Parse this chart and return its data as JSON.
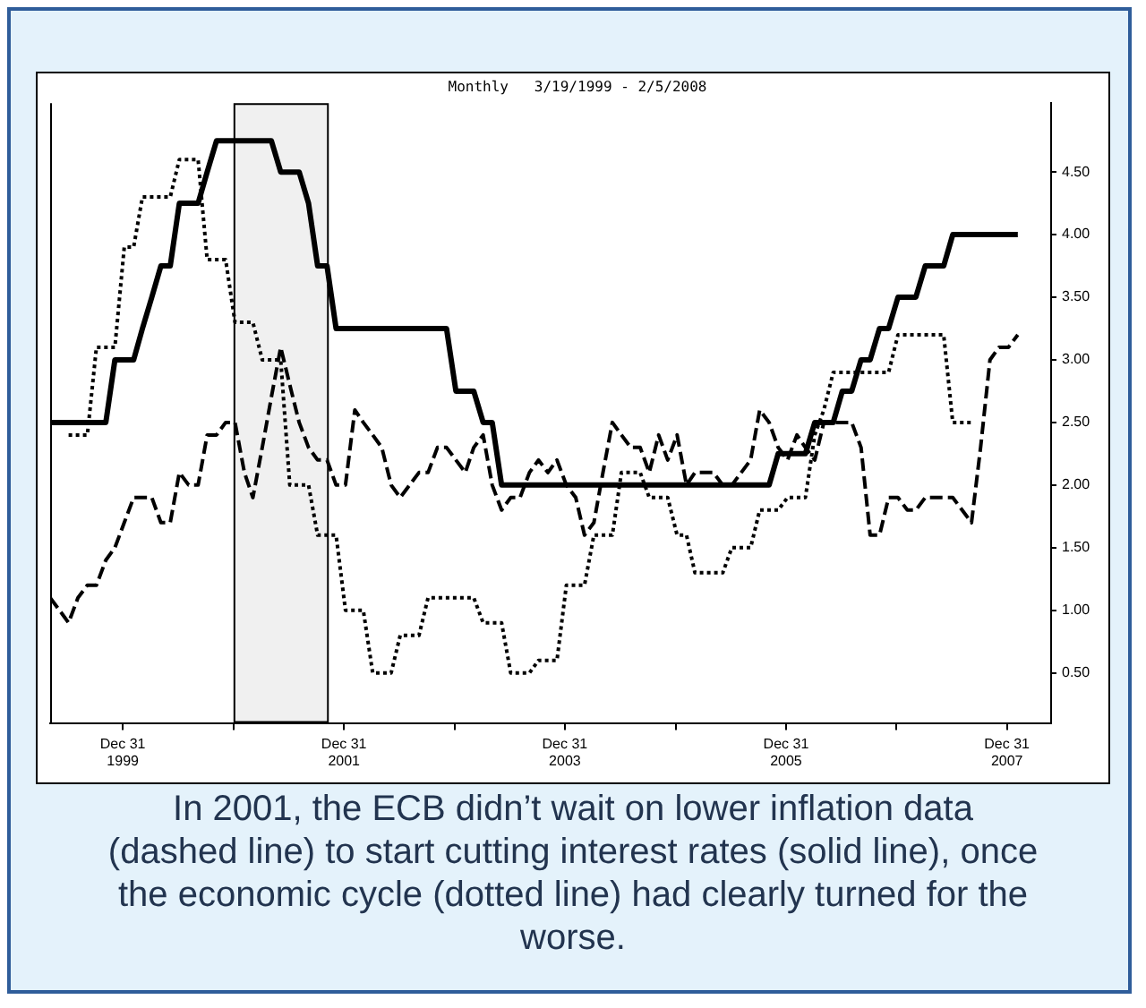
{
  "chart_data": {
    "type": "line",
    "title": "Monthly   3/19/1999 - 2/5/2008",
    "x": [
      "1999-05-05",
      "1999-06-05",
      "1999-07-05",
      "1999-08-05",
      "1999-09-05",
      "1999-10-05",
      "1999-11-05",
      "1999-12-05",
      "2000-01-05",
      "2000-02-05",
      "2000-03-05",
      "2000-04-05",
      "2000-05-05",
      "2000-06-05",
      "2000-07-05",
      "2000-08-05",
      "2000-09-05",
      "2000-10-05",
      "2000-11-05",
      "2000-12-05",
      "2001-01-05",
      "2001-02-05",
      "2001-03-05",
      "2001-04-05",
      "2001-05-05",
      "2001-06-05",
      "2001-07-05",
      "2001-08-05",
      "2001-09-05",
      "2001-10-05",
      "2001-11-05",
      "2001-12-05",
      "2002-01-05",
      "2002-02-05",
      "2002-03-05",
      "2002-04-05",
      "2002-05-05",
      "2002-06-05",
      "2002-07-05",
      "2002-08-05",
      "2002-09-05",
      "2002-10-05",
      "2002-11-05",
      "2002-12-05",
      "2003-01-05",
      "2003-02-05",
      "2003-03-05",
      "2003-04-05",
      "2003-05-05",
      "2003-06-05",
      "2003-07-05",
      "2003-08-05",
      "2003-09-05",
      "2003-10-05",
      "2003-11-05",
      "2003-12-05",
      "2004-01-05",
      "2004-02-05",
      "2004-03-05",
      "2004-04-05",
      "2004-05-05",
      "2004-06-05",
      "2004-07-05",
      "2004-08-05",
      "2004-09-05",
      "2004-10-05",
      "2004-11-05",
      "2004-12-05",
      "2005-01-05",
      "2005-02-05",
      "2005-03-05",
      "2005-04-05",
      "2005-05-05",
      "2005-06-05",
      "2005-07-05",
      "2005-08-05",
      "2005-09-05",
      "2005-10-05",
      "2005-11-05",
      "2005-12-05",
      "2006-01-05",
      "2006-02-05",
      "2006-03-05",
      "2006-04-05",
      "2006-05-05",
      "2006-06-05",
      "2006-07-05",
      "2006-08-05",
      "2006-09-05",
      "2006-10-05",
      "2006-11-05",
      "2006-12-05",
      "2007-01-05",
      "2007-02-05",
      "2007-03-05",
      "2007-04-05",
      "2007-05-05",
      "2007-06-05",
      "2007-07-05",
      "2007-08-05",
      "2007-09-05",
      "2007-10-05",
      "2007-11-05",
      "2007-12-05",
      "2008-01-05",
      "2008-02-05"
    ],
    "series": [
      {
        "color": "#000000",
        "line_style": "solid",
        "values": [
          2.5,
          2.5,
          2.5,
          2.5,
          2.5,
          2.5,
          2.5,
          3,
          3,
          3,
          3.25,
          3.5,
          3.75,
          3.75,
          4.25,
          4.25,
          4.25,
          4.5,
          4.75,
          4.75,
          4.75,
          4.75,
          4.75,
          4.75,
          4.75,
          4.5,
          4.5,
          4.5,
          4.25,
          3.75,
          3.75,
          3.25,
          3.25,
          3.25,
          3.25,
          3.25,
          3.25,
          3.25,
          3.25,
          3.25,
          3.25,
          3.25,
          3.25,
          3.25,
          2.75,
          2.75,
          2.75,
          2.5,
          2.5,
          2,
          2,
          2,
          2,
          2,
          2,
          2,
          2,
          2,
          2,
          2,
          2,
          2,
          2,
          2,
          2,
          2,
          2,
          2,
          2,
          2,
          2,
          2,
          2,
          2,
          2,
          2,
          2,
          2,
          2,
          2.25,
          2.25,
          2.25,
          2.25,
          2.5,
          2.5,
          2.5,
          2.75,
          2.75,
          3,
          3,
          3.25,
          3.25,
          3.5,
          3.5,
          3.5,
          3.75,
          3.75,
          3.75,
          4,
          4,
          4,
          4,
          4,
          4,
          4,
          4
        ]
      },
      {
        "color": "#000000",
        "line_style": "dashed",
        "values": [
          1.1,
          1.0,
          0.9,
          1.1,
          1.2,
          1.2,
          1.4,
          1.5,
          1.7,
          1.9,
          1.9,
          1.9,
          1.7,
          1.7,
          2.1,
          2.0,
          2.0,
          2.4,
          2.4,
          2.5,
          2.5,
          2.1,
          1.9,
          2.3,
          2.7,
          3.1,
          2.8,
          2.5,
          2.3,
          2.2,
          2.2,
          2.0,
          2.0,
          2.6,
          2.5,
          2.4,
          2.3,
          2.0,
          1.9,
          2.0,
          2.1,
          2.1,
          2.3,
          2.3,
          2.2,
          2.1,
          2.3,
          2.4,
          2.0,
          1.8,
          1.9,
          1.9,
          2.1,
          2.2,
          2.1,
          2.2,
          2.0,
          1.9,
          1.6,
          1.7,
          2.1,
          2.5,
          2.4,
          2.3,
          2.3,
          2.1,
          2.4,
          2.2,
          2.4,
          2.0,
          2.1,
          2.1,
          2.1,
          2.0,
          2.0,
          2.1,
          2.2,
          2.6,
          2.5,
          2.3,
          2.2,
          2.4,
          2.3,
          2.2,
          2.5,
          2.5,
          2.5,
          2.5,
          2.3,
          1.6,
          1.6,
          1.9,
          1.9,
          1.8,
          1.8,
          1.9,
          1.9,
          1.9,
          1.9,
          1.8,
          1.7,
          2.3,
          3.0,
          3.1,
          3.1,
          3.2
        ]
      },
      {
        "color": "#000000",
        "line_style": "dotted",
        "values": [
          null,
          null,
          2.4,
          2.4,
          2.4,
          3.1,
          3.1,
          3.1,
          3.9,
          3.9,
          4.3,
          4.3,
          4.3,
          4.3,
          4.6,
          4.6,
          4.6,
          3.8,
          3.8,
          3.8,
          3.3,
          3.3,
          3.3,
          3.0,
          3.0,
          3.0,
          2.0,
          2.0,
          2.0,
          1.6,
          1.6,
          1.6,
          1.0,
          1.0,
          1.0,
          0.5,
          0.5,
          0.5,
          0.8,
          0.8,
          0.8,
          1.1,
          1.1,
          1.1,
          1.1,
          1.1,
          1.1,
          0.9,
          0.9,
          0.9,
          0.5,
          0.5,
          0.5,
          0.6,
          0.6,
          0.6,
          1.2,
          1.2,
          1.2,
          1.6,
          1.6,
          1.6,
          2.1,
          2.1,
          2.1,
          1.9,
          1.9,
          1.9,
          1.6,
          1.6,
          1.3,
          1.3,
          1.3,
          1.3,
          1.5,
          1.5,
          1.5,
          1.8,
          1.8,
          1.8,
          1.9,
          1.9,
          1.9,
          2.4,
          2.6,
          2.9,
          2.9,
          2.9,
          2.9,
          2.9,
          2.9,
          2.9,
          3.2,
          3.2,
          3.2,
          3.2,
          3.2,
          3.2,
          2.5,
          2.5,
          2.5,
          null,
          null,
          null,
          null,
          null
        ]
      }
    ],
    "xlim": [
      "1999-05-05",
      "2008-05-25"
    ],
    "xticks": [
      {
        "value": "1999-12-31",
        "label": "Dec 31\n1999"
      },
      {
        "value": "2000-12-31",
        "label": null
      },
      {
        "value": "2001-12-31",
        "label": "Dec 31\n2001"
      },
      {
        "value": "2002-12-31",
        "label": null
      },
      {
        "value": "2003-12-31",
        "label": "Dec 31\n2003"
      },
      {
        "value": "2004-12-31",
        "label": null
      },
      {
        "value": "2005-12-31",
        "label": "Dec 31\n2005"
      },
      {
        "value": "2006-12-31",
        "label": null
      },
      {
        "value": "2007-12-31",
        "label": "Dec 31\n2007"
      }
    ],
    "ylim": [
      0.1,
      5.05
    ],
    "yticks": [
      {
        "value": 0.5,
        "label": "0.50"
      },
      {
        "value": 1,
        "label": "1.00"
      },
      {
        "value": 1.5,
        "label": "1.50"
      },
      {
        "value": 2,
        "label": "2.00"
      },
      {
        "value": 2.5,
        "label": "2.50"
      },
      {
        "value": 3,
        "label": "3.00"
      },
      {
        "value": 3.5,
        "label": "3.50"
      },
      {
        "value": 4,
        "label": "4.00"
      },
      {
        "value": 4.5,
        "label": "4.50"
      }
    ],
    "bands": [
      {
        "axis": "x",
        "from": "2000-12-31",
        "to": "2001-11-05"
      }
    ],
    "grid": false,
    "legend": false,
    "annotations": [
      "In 2001, the ECB didn’t wait on lower inflation data (dashed line) to start cutting interest rates (solid line), once the economic cycle (dotted line) had clearly turned for the worse."
    ]
  }
}
